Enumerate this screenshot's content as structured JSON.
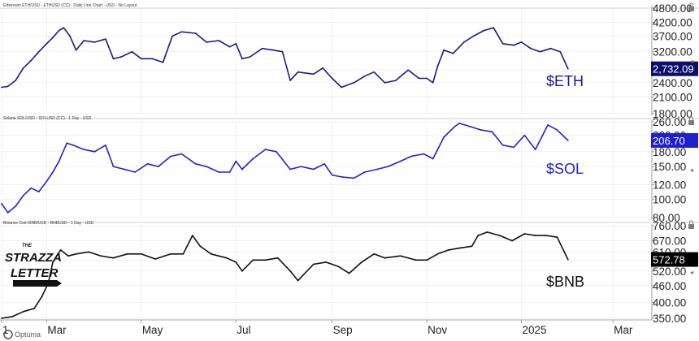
{
  "chart_data": [
    {
      "type": "line",
      "header": "Ethereum ETH/USD - ETHUSD (CC) - Daily Line Chart - USD - No Layout",
      "ticker_label": "$ETH",
      "last_value_label": "2,732.09",
      "last_value": 2732.09,
      "color": "#1a1a8c",
      "yticks": [
        "4800.00",
        "4200.00",
        "3700.00",
        "3200.00",
        "2700.00",
        "2400.00",
        "2100.00",
        "1800.00"
      ],
      "ylim": [
        1800,
        4800
      ],
      "y_scale": "log",
      "x": [
        "2024-02-01",
        "2024-02-05",
        "2024-02-10",
        "2024-02-15",
        "2024-02-20",
        "2024-02-25",
        "2024-03-01",
        "2024-03-05",
        "2024-03-09",
        "2024-03-12",
        "2024-03-16",
        "2024-03-20",
        "2024-03-25",
        "2024-04-01",
        "2024-04-08",
        "2024-04-13",
        "2024-04-18",
        "2024-04-25",
        "2024-05-01",
        "2024-05-08",
        "2024-05-15",
        "2024-05-21",
        "2024-05-27",
        "2024-06-05",
        "2024-06-12",
        "2024-06-20",
        "2024-06-27",
        "2024-07-01",
        "2024-07-05",
        "2024-07-10",
        "2024-07-18",
        "2024-07-25",
        "2024-07-31",
        "2024-08-05",
        "2024-08-10",
        "2024-08-20",
        "2024-08-26",
        "2024-09-01",
        "2024-09-07",
        "2024-09-15",
        "2024-09-22",
        "2024-09-28",
        "2024-10-05",
        "2024-10-12",
        "2024-10-20",
        "2024-10-27",
        "2024-11-01",
        "2024-11-05",
        "2024-11-08",
        "2024-11-12",
        "2024-11-18",
        "2024-11-25",
        "2024-12-01",
        "2024-12-08",
        "2024-12-14",
        "2024-12-20",
        "2024-12-27",
        "2025-01-01",
        "2025-01-07",
        "2025-01-13",
        "2025-01-20",
        "2025-01-26",
        "2025-01-31"
      ],
      "values": [
        2300,
        2320,
        2450,
        2750,
        2950,
        3200,
        3450,
        3650,
        3900,
        4000,
        3700,
        3250,
        3550,
        3500,
        3600,
        3000,
        3050,
        3200,
        3000,
        3000,
        2900,
        3700,
        3850,
        3800,
        3500,
        3550,
        3350,
        3450,
        3000,
        3050,
        3300,
        3250,
        3200,
        2450,
        2650,
        2600,
        2750,
        2500,
        2300,
        2400,
        2550,
        2650,
        2400,
        2450,
        2700,
        2500,
        2500,
        2400,
        2800,
        3250,
        3150,
        3500,
        3700,
        3900,
        4000,
        3450,
        3400,
        3500,
        3300,
        3200,
        3300,
        3200,
        2732.09
      ],
      "xlim": [
        "2024-02-01",
        "2025-03-25"
      ],
      "grid": true
    },
    {
      "type": "line",
      "header": "Solana SOL/USD - SOLUSD (CC) - 1 Day - USD",
      "ticker_label": "$SOL",
      "last_value_label": "206.70",
      "last_value": 206.7,
      "color": "#2222cc",
      "yticks": [
        "260.00",
        "220.00",
        "180.00",
        "150.00",
        "120.00",
        "100.00",
        "80.00"
      ],
      "ylim": [
        80,
        260
      ],
      "y_scale": "log",
      "x": [
        "2024-02-01",
        "2024-02-05",
        "2024-02-10",
        "2024-02-15",
        "2024-02-20",
        "2024-02-25",
        "2024-03-01",
        "2024-03-05",
        "2024-03-09",
        "2024-03-14",
        "2024-03-18",
        "2024-03-25",
        "2024-04-01",
        "2024-04-08",
        "2024-04-13",
        "2024-04-20",
        "2024-04-27",
        "2024-05-05",
        "2024-05-12",
        "2024-05-20",
        "2024-05-27",
        "2024-06-05",
        "2024-06-12",
        "2024-06-20",
        "2024-06-27",
        "2024-07-01",
        "2024-07-05",
        "2024-07-12",
        "2024-07-20",
        "2024-07-27",
        "2024-08-05",
        "2024-08-12",
        "2024-08-20",
        "2024-08-27",
        "2024-09-01",
        "2024-09-07",
        "2024-09-15",
        "2024-09-22",
        "2024-09-30",
        "2024-10-07",
        "2024-10-15",
        "2024-10-22",
        "2024-10-30",
        "2024-11-05",
        "2024-11-12",
        "2024-11-19",
        "2024-11-22",
        "2024-11-29",
        "2024-12-06",
        "2024-12-13",
        "2024-12-20",
        "2024-12-27",
        "2025-01-03",
        "2025-01-10",
        "2025-01-18",
        "2025-01-24",
        "2025-01-31"
      ],
      "values": [
        95,
        85,
        92,
        105,
        115,
        110,
        125,
        140,
        160,
        200,
        195,
        185,
        180,
        195,
        150,
        145,
        140,
        155,
        150,
        170,
        175,
        155,
        150,
        140,
        140,
        160,
        145,
        165,
        185,
        180,
        145,
        150,
        145,
        155,
        135,
        132,
        130,
        140,
        145,
        150,
        160,
        170,
        175,
        165,
        215,
        245,
        255,
        245,
        235,
        230,
        195,
        190,
        220,
        185,
        250,
        235,
        206.7
      ],
      "xlim": [
        "2024-02-01",
        "2025-03-25"
      ],
      "grid": true
    },
    {
      "type": "line",
      "header": "Binance Coin BNB/USD - BNBUSD - 1 Day - USD",
      "ticker_label": "$BNB",
      "last_value_label": "572.78",
      "last_value": 572.78,
      "color": "#111111",
      "yticks": [
        "760.00",
        "670.00",
        "610.00",
        "570.00",
        "520.00",
        "460.00",
        "400.00",
        "350.00"
      ],
      "ylim": [
        350,
        760
      ],
      "y_scale": "log",
      "x": [
        "2024-02-01",
        "2024-02-08",
        "2024-02-15",
        "2024-02-22",
        "2024-02-27",
        "2024-03-02",
        "2024-03-05",
        "2024-03-10",
        "2024-03-15",
        "2024-03-20",
        "2024-03-28",
        "2024-04-05",
        "2024-04-13",
        "2024-04-22",
        "2024-05-01",
        "2024-05-10",
        "2024-05-20",
        "2024-05-28",
        "2024-06-03",
        "2024-06-08",
        "2024-06-15",
        "2024-06-25",
        "2024-07-01",
        "2024-07-05",
        "2024-07-12",
        "2024-07-20",
        "2024-07-28",
        "2024-08-05",
        "2024-08-10",
        "2024-08-20",
        "2024-08-28",
        "2024-09-05",
        "2024-09-12",
        "2024-09-20",
        "2024-09-28",
        "2024-10-05",
        "2024-10-15",
        "2024-10-25",
        "2024-11-01",
        "2024-11-08",
        "2024-11-15",
        "2024-11-22",
        "2024-11-30",
        "2024-12-04",
        "2024-12-10",
        "2024-12-18",
        "2024-12-26",
        "2025-01-03",
        "2025-01-10",
        "2025-01-17",
        "2025-01-24",
        "2025-01-31"
      ],
      "values": [
        350,
        355,
        370,
        380,
        420,
        470,
        560,
        620,
        590,
        600,
        610,
        590,
        580,
        600,
        600,
        575,
        600,
        600,
        700,
        640,
        600,
        580,
        560,
        520,
        570,
        570,
        580,
        520,
        480,
        550,
        560,
        540,
        510,
        560,
        600,
        580,
        590,
        570,
        570,
        600,
        620,
        630,
        640,
        700,
        720,
        700,
        670,
        710,
        700,
        700,
        690,
        572.78
      ],
      "xlim": [
        "2024-02-01",
        "2025-03-25"
      ],
      "grid": true
    }
  ],
  "x_axis": {
    "ticks": [
      {
        "label": "1",
        "date": "2024-02-01"
      },
      {
        "label": "Mar",
        "date": "2024-03-01"
      },
      {
        "label": "May",
        "date": "2024-05-01"
      },
      {
        "label": "Jul",
        "date": "2024-07-01"
      },
      {
        "label": "Sep",
        "date": "2024-09-01"
      },
      {
        "label": "Nov",
        "date": "2024-11-01"
      },
      {
        "label": "2025",
        "date": "2025-01-01"
      },
      {
        "label": "Mar",
        "date": "2025-03-01"
      }
    ]
  },
  "branding": {
    "logo_text": {
      "line1": "THE",
      "line2": "STRAZZA",
      "line3": "LETTER"
    },
    "footer": "Optuma"
  },
  "controls": {
    "lock_icon": "lock-icon",
    "scroll_icon": "scroll-arrow-icon"
  },
  "colors": {
    "grid": "#e6e6e6",
    "axis": "#888888",
    "eth_label_bg": "#0d0d6b",
    "sol_label_bg": "#1f1fcf",
    "bnb_label_bg": "#000000"
  }
}
